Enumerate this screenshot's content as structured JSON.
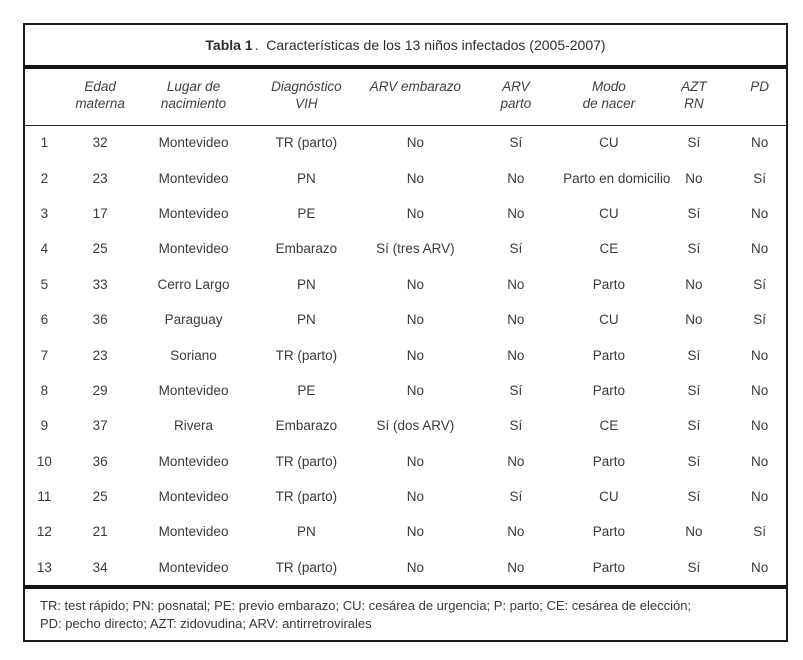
{
  "title": {
    "bold": "Tabla 1",
    "rest": ".  Características de los 13 niños infectados (2005-2007)"
  },
  "table": {
    "columns": [
      {
        "key": "row-number",
        "line1": "",
        "line2": ""
      },
      {
        "key": "edad-materna",
        "line1": "Edad",
        "line2": "materna"
      },
      {
        "key": "lugar-nacimiento",
        "line1": "Lugar de",
        "line2": "nacimiento"
      },
      {
        "key": "diagnostico-vih",
        "line1": "Diagnóstico",
        "line2": "VIH"
      },
      {
        "key": "arv-embarazo",
        "line1": "ARV embarazo",
        "line2": ""
      },
      {
        "key": "arv-parto",
        "line1": "ARV",
        "line2": "parto"
      },
      {
        "key": "modo-nacer",
        "line1": "Modo",
        "line2": "de nacer"
      },
      {
        "key": "azt-rn",
        "line1": "AZT",
        "line2": "RN"
      },
      {
        "key": "pd",
        "line1": "PD",
        "line2": ""
      }
    ],
    "rows": [
      [
        "1",
        "32",
        "Montevideo",
        "TR (parto)",
        "No",
        "Sí",
        "CU",
        "Sí",
        "No"
      ],
      [
        "2",
        "23",
        "Montevideo",
        "PN",
        "No",
        "No",
        "Parto en domicilio",
        "No",
        "Sí"
      ],
      [
        "3",
        "17",
        "Montevideo",
        "PE",
        "No",
        "No",
        "CU",
        "Sí",
        "No"
      ],
      [
        "4",
        "25",
        "Montevideo",
        "Embarazo",
        "Sí (tres ARV)",
        "Sí",
        "CE",
        "Sí",
        "No"
      ],
      [
        "5",
        "33",
        "Cerro Largo",
        "PN",
        "No",
        "No",
        "Parto",
        "No",
        "Sí"
      ],
      [
        "6",
        "36",
        "Paraguay",
        "PN",
        "No",
        "No",
        "CU",
        "No",
        "Sí"
      ],
      [
        "7",
        "23",
        "Soriano",
        "TR (parto)",
        "No",
        "No",
        "Parto",
        "Sí",
        "No"
      ],
      [
        "8",
        "29",
        "Montevideo",
        "PE",
        "No",
        "Sí",
        "Parto",
        "Sí",
        "No"
      ],
      [
        "9",
        "37",
        "Rivera",
        "Embarazo",
        "Sí (dos ARV)",
        "Sí",
        "CE",
        "Sí",
        "No"
      ],
      [
        "10",
        "36",
        "Montevideo",
        "TR (parto)",
        "No",
        "No",
        "Parto",
        "Sí",
        "No"
      ],
      [
        "11",
        "25",
        "Montevideo",
        "TR (parto)",
        "No",
        "Sí",
        "CU",
        "Sí",
        "No"
      ],
      [
        "12",
        "21",
        "Montevideo",
        "PN",
        "No",
        "No",
        "Parto",
        "No",
        "Sí"
      ],
      [
        "13",
        "34",
        "Montevideo",
        "TR (parto)",
        "No",
        "No",
        "Parto",
        "Sí",
        "No"
      ]
    ]
  },
  "footnote": {
    "line1": "TR: test rápido; PN: posnatal; PE: previo embarazo; CU: cesárea de urgencia; P: parto; CE: cesárea de elección;",
    "line2": "PD: pecho directo; AZT: zidovudina; ARV: antirretrovirales"
  },
  "colors": {
    "border": "#1c1c1c",
    "text": "#3a3a3a",
    "background": "#ffffff"
  }
}
